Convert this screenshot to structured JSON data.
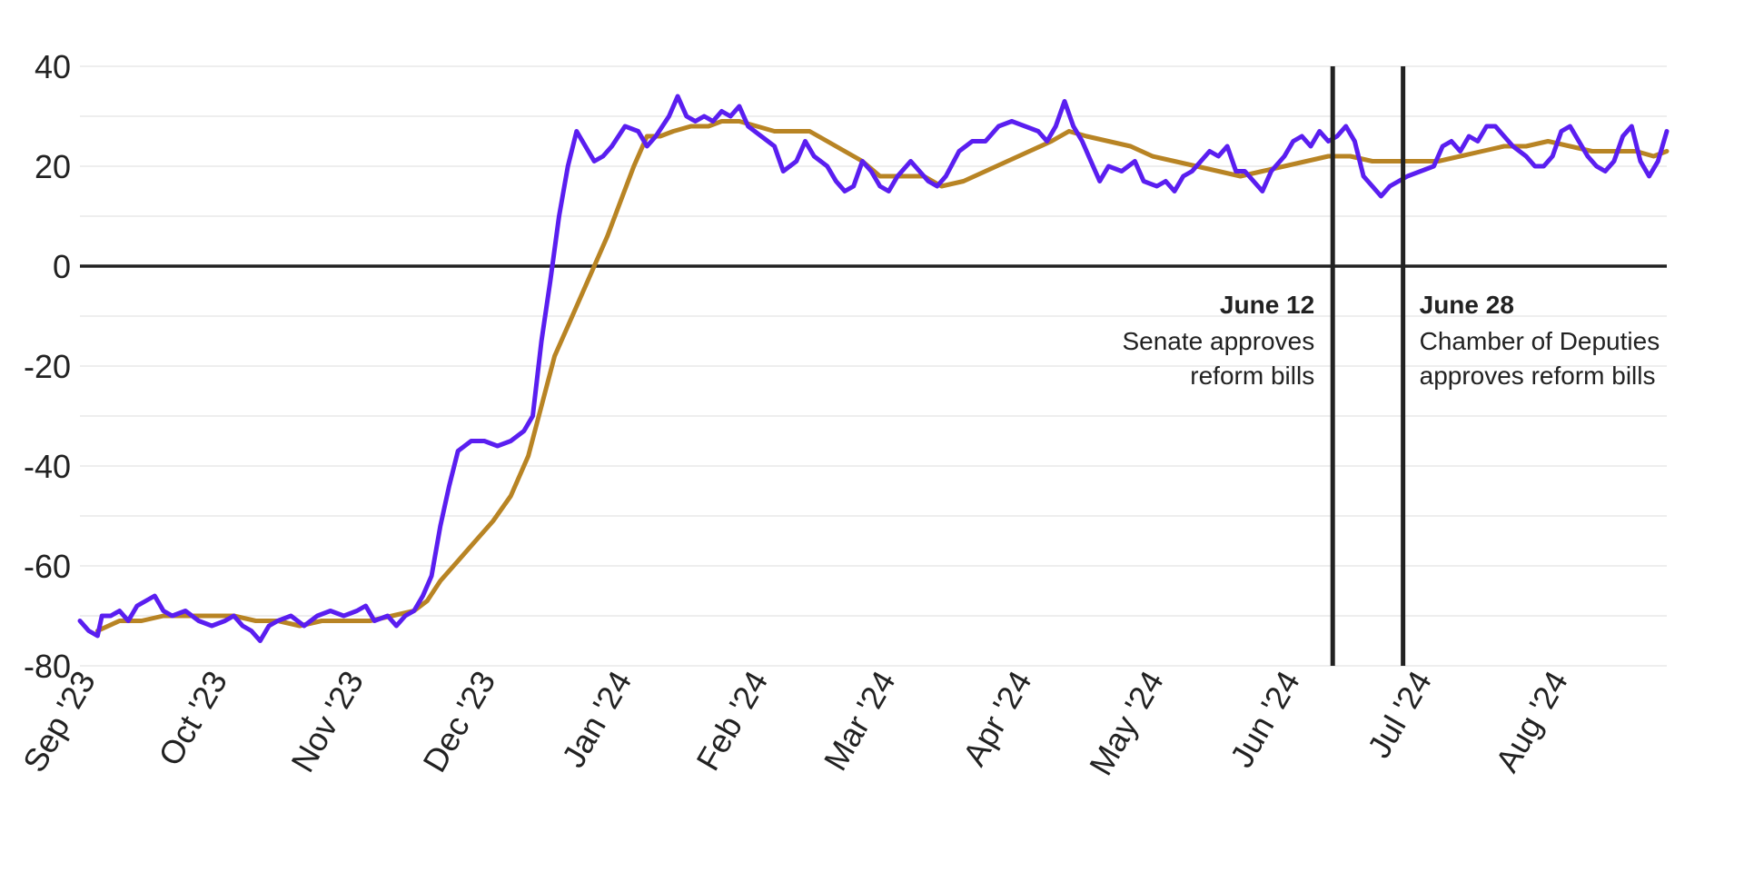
{
  "chart_data": {
    "type": "line",
    "title": "",
    "xlabel": "",
    "ylabel": "",
    "ylim": [
      -80,
      40
    ],
    "yticks": [
      40,
      20,
      0,
      -20,
      -40,
      -60,
      -80
    ],
    "x_range": [
      "2023-09-01",
      "2024-08-27"
    ],
    "x_tick_labels": [
      {
        "date": "2023-09-01",
        "label": "Sep '23"
      },
      {
        "date": "2023-10-01",
        "label": "Oct '23"
      },
      {
        "date": "2023-11-01",
        "label": "Nov '23"
      },
      {
        "date": "2023-12-01",
        "label": "Dec '23"
      },
      {
        "date": "2024-01-01",
        "label": "Jan '24"
      },
      {
        "date": "2024-02-01",
        "label": "Feb '24"
      },
      {
        "date": "2024-03-01",
        "label": "Mar '24"
      },
      {
        "date": "2024-04-01",
        "label": "Apr '24"
      },
      {
        "date": "2024-05-01",
        "label": "May '24"
      },
      {
        "date": "2024-06-01",
        "label": "Jun '24"
      },
      {
        "date": "2024-07-01",
        "label": "Jul '24"
      },
      {
        "date": "2024-08-01",
        "label": "Aug '24"
      }
    ],
    "grid": true,
    "series": [
      {
        "color": "#5a1ef0",
        "points": [
          [
            "2023-09-01",
            -71
          ],
          [
            "2023-09-03",
            -73
          ],
          [
            "2023-09-05",
            -74
          ],
          [
            "2023-09-06",
            -70
          ],
          [
            "2023-09-08",
            -70
          ],
          [
            "2023-09-10",
            -69
          ],
          [
            "2023-09-12",
            -71
          ],
          [
            "2023-09-14",
            -68
          ],
          [
            "2023-09-16",
            -67
          ],
          [
            "2023-09-18",
            -66
          ],
          [
            "2023-09-20",
            -69
          ],
          [
            "2023-09-22",
            -70
          ],
          [
            "2023-09-25",
            -69
          ],
          [
            "2023-09-28",
            -71
          ],
          [
            "2023-10-01",
            -72
          ],
          [
            "2023-10-04",
            -71
          ],
          [
            "2023-10-06",
            -70
          ],
          [
            "2023-10-08",
            -72
          ],
          [
            "2023-10-10",
            -73
          ],
          [
            "2023-10-12",
            -75
          ],
          [
            "2023-10-14",
            -72
          ],
          [
            "2023-10-16",
            -71
          ],
          [
            "2023-10-19",
            -70
          ],
          [
            "2023-10-22",
            -72
          ],
          [
            "2023-10-25",
            -70
          ],
          [
            "2023-10-28",
            -69
          ],
          [
            "2023-10-31",
            -70
          ],
          [
            "2023-11-03",
            -69
          ],
          [
            "2023-11-05",
            -68
          ],
          [
            "2023-11-07",
            -71
          ],
          [
            "2023-11-10",
            -70
          ],
          [
            "2023-11-12",
            -72
          ],
          [
            "2023-11-14",
            -70
          ],
          [
            "2023-11-16",
            -69
          ],
          [
            "2023-11-18",
            -66
          ],
          [
            "2023-11-20",
            -62
          ],
          [
            "2023-11-22",
            -52
          ],
          [
            "2023-11-24",
            -44
          ],
          [
            "2023-11-26",
            -37
          ],
          [
            "2023-11-29",
            -35
          ],
          [
            "2023-12-02",
            -35
          ],
          [
            "2023-12-05",
            -36
          ],
          [
            "2023-12-08",
            -35
          ],
          [
            "2023-12-11",
            -33
          ],
          [
            "2023-12-13",
            -30
          ],
          [
            "2023-12-15",
            -15
          ],
          [
            "2023-12-17",
            -3
          ],
          [
            "2023-12-19",
            10
          ],
          [
            "2023-12-21",
            20
          ],
          [
            "2023-12-23",
            27
          ],
          [
            "2023-12-25",
            24
          ],
          [
            "2023-12-27",
            21
          ],
          [
            "2023-12-29",
            22
          ],
          [
            "2023-12-31",
            24
          ],
          [
            "2024-01-03",
            28
          ],
          [
            "2024-01-06",
            27
          ],
          [
            "2024-01-08",
            24
          ],
          [
            "2024-01-10",
            26
          ],
          [
            "2024-01-13",
            30
          ],
          [
            "2024-01-15",
            34
          ],
          [
            "2024-01-17",
            30
          ],
          [
            "2024-01-19",
            29
          ],
          [
            "2024-01-21",
            30
          ],
          [
            "2024-01-23",
            29
          ],
          [
            "2024-01-25",
            31
          ],
          [
            "2024-01-27",
            30
          ],
          [
            "2024-01-29",
            32
          ],
          [
            "2024-01-31",
            28
          ],
          [
            "2024-02-03",
            26
          ],
          [
            "2024-02-06",
            24
          ],
          [
            "2024-02-08",
            19
          ],
          [
            "2024-02-11",
            21
          ],
          [
            "2024-02-13",
            25
          ],
          [
            "2024-02-15",
            22
          ],
          [
            "2024-02-18",
            20
          ],
          [
            "2024-02-20",
            17
          ],
          [
            "2024-02-22",
            15
          ],
          [
            "2024-02-24",
            16
          ],
          [
            "2024-02-26",
            21
          ],
          [
            "2024-02-28",
            19
          ],
          [
            "2024-03-01",
            16
          ],
          [
            "2024-03-03",
            15
          ],
          [
            "2024-03-05",
            18
          ],
          [
            "2024-03-08",
            21
          ],
          [
            "2024-03-10",
            19
          ],
          [
            "2024-03-12",
            17
          ],
          [
            "2024-03-14",
            16
          ],
          [
            "2024-03-16",
            18
          ],
          [
            "2024-03-19",
            23
          ],
          [
            "2024-03-22",
            25
          ],
          [
            "2024-03-25",
            25
          ],
          [
            "2024-03-28",
            28
          ],
          [
            "2024-03-31",
            29
          ],
          [
            "2024-04-03",
            28
          ],
          [
            "2024-04-06",
            27
          ],
          [
            "2024-04-08",
            25
          ],
          [
            "2024-04-10",
            28
          ],
          [
            "2024-04-12",
            33
          ],
          [
            "2024-04-14",
            28
          ],
          [
            "2024-04-16",
            25
          ],
          [
            "2024-04-18",
            21
          ],
          [
            "2024-04-20",
            17
          ],
          [
            "2024-04-22",
            20
          ],
          [
            "2024-04-25",
            19
          ],
          [
            "2024-04-28",
            21
          ],
          [
            "2024-04-30",
            17
          ],
          [
            "2024-05-03",
            16
          ],
          [
            "2024-05-05",
            17
          ],
          [
            "2024-05-07",
            15
          ],
          [
            "2024-05-09",
            18
          ],
          [
            "2024-05-11",
            19
          ],
          [
            "2024-05-13",
            21
          ],
          [
            "2024-05-15",
            23
          ],
          [
            "2024-05-17",
            22
          ],
          [
            "2024-05-19",
            24
          ],
          [
            "2024-05-21",
            19
          ],
          [
            "2024-05-23",
            19
          ],
          [
            "2024-05-25",
            17
          ],
          [
            "2024-05-27",
            15
          ],
          [
            "2024-05-29",
            19
          ],
          [
            "2024-06-01",
            22
          ],
          [
            "2024-06-03",
            25
          ],
          [
            "2024-06-05",
            26
          ],
          [
            "2024-06-07",
            24
          ],
          [
            "2024-06-09",
            27
          ],
          [
            "2024-06-11",
            25
          ],
          [
            "2024-06-13",
            26
          ],
          [
            "2024-06-15",
            28
          ],
          [
            "2024-06-17",
            25
          ],
          [
            "2024-06-19",
            18
          ],
          [
            "2024-06-21",
            16
          ],
          [
            "2024-06-23",
            14
          ],
          [
            "2024-06-25",
            16
          ],
          [
            "2024-06-27",
            17
          ],
          [
            "2024-06-29",
            18
          ],
          [
            "2024-07-02",
            19
          ],
          [
            "2024-07-05",
            20
          ],
          [
            "2024-07-07",
            24
          ],
          [
            "2024-07-09",
            25
          ],
          [
            "2024-07-11",
            23
          ],
          [
            "2024-07-13",
            26
          ],
          [
            "2024-07-15",
            25
          ],
          [
            "2024-07-17",
            28
          ],
          [
            "2024-07-19",
            28
          ],
          [
            "2024-07-21",
            26
          ],
          [
            "2024-07-23",
            24
          ],
          [
            "2024-07-26",
            22
          ],
          [
            "2024-07-28",
            20
          ],
          [
            "2024-07-30",
            20
          ],
          [
            "2024-08-01",
            22
          ],
          [
            "2024-08-03",
            27
          ],
          [
            "2024-08-05",
            28
          ],
          [
            "2024-08-07",
            25
          ],
          [
            "2024-08-09",
            22
          ],
          [
            "2024-08-11",
            20
          ],
          [
            "2024-08-13",
            19
          ],
          [
            "2024-08-15",
            21
          ],
          [
            "2024-08-17",
            26
          ],
          [
            "2024-08-19",
            28
          ],
          [
            "2024-08-21",
            21
          ],
          [
            "2024-08-23",
            18
          ],
          [
            "2024-08-25",
            21
          ],
          [
            "2024-08-27",
            27
          ]
        ]
      },
      {
        "color": "#b88424",
        "points": [
          [
            "2023-09-05",
            -73
          ],
          [
            "2023-09-10",
            -71
          ],
          [
            "2023-09-15",
            -71
          ],
          [
            "2023-09-20",
            -70
          ],
          [
            "2023-09-25",
            -70
          ],
          [
            "2023-10-01",
            -70
          ],
          [
            "2023-10-06",
            -70
          ],
          [
            "2023-10-11",
            -71
          ],
          [
            "2023-10-16",
            -71
          ],
          [
            "2023-10-21",
            -72
          ],
          [
            "2023-10-26",
            -71
          ],
          [
            "2023-11-01",
            -71
          ],
          [
            "2023-11-06",
            -71
          ],
          [
            "2023-11-11",
            -70
          ],
          [
            "2023-11-16",
            -69
          ],
          [
            "2023-11-19",
            -67
          ],
          [
            "2023-11-22",
            -63
          ],
          [
            "2023-11-26",
            -59
          ],
          [
            "2023-11-30",
            -55
          ],
          [
            "2023-12-04",
            -51
          ],
          [
            "2023-12-08",
            -46
          ],
          [
            "2023-12-12",
            -38
          ],
          [
            "2023-12-15",
            -28
          ],
          [
            "2023-12-18",
            -18
          ],
          [
            "2023-12-21",
            -12
          ],
          [
            "2023-12-24",
            -6
          ],
          [
            "2023-12-27",
            0
          ],
          [
            "2023-12-30",
            6
          ],
          [
            "2024-01-02",
            13
          ],
          [
            "2024-01-05",
            20
          ],
          [
            "2024-01-08",
            26
          ],
          [
            "2024-01-11",
            26
          ],
          [
            "2024-01-14",
            27
          ],
          [
            "2024-01-18",
            28
          ],
          [
            "2024-01-22",
            28
          ],
          [
            "2024-01-25",
            29
          ],
          [
            "2024-01-29",
            29
          ],
          [
            "2024-02-02",
            28
          ],
          [
            "2024-02-06",
            27
          ],
          [
            "2024-02-10",
            27
          ],
          [
            "2024-02-14",
            27
          ],
          [
            "2024-02-18",
            25
          ],
          [
            "2024-02-22",
            23
          ],
          [
            "2024-02-26",
            21
          ],
          [
            "2024-03-01",
            18
          ],
          [
            "2024-03-06",
            18
          ],
          [
            "2024-03-11",
            18
          ],
          [
            "2024-03-15",
            16
          ],
          [
            "2024-03-20",
            17
          ],
          [
            "2024-03-25",
            19
          ],
          [
            "2024-03-30",
            21
          ],
          [
            "2024-04-04",
            23
          ],
          [
            "2024-04-09",
            25
          ],
          [
            "2024-04-13",
            27
          ],
          [
            "2024-04-17",
            26
          ],
          [
            "2024-04-22",
            25
          ],
          [
            "2024-04-27",
            24
          ],
          [
            "2024-05-02",
            22
          ],
          [
            "2024-05-07",
            21
          ],
          [
            "2024-05-12",
            20
          ],
          [
            "2024-05-17",
            19
          ],
          [
            "2024-05-22",
            18
          ],
          [
            "2024-05-27",
            19
          ],
          [
            "2024-06-01",
            20
          ],
          [
            "2024-06-06",
            21
          ],
          [
            "2024-06-11",
            22
          ],
          [
            "2024-06-16",
            22
          ],
          [
            "2024-06-21",
            21
          ],
          [
            "2024-06-26",
            21
          ],
          [
            "2024-07-01",
            21
          ],
          [
            "2024-07-06",
            21
          ],
          [
            "2024-07-11",
            22
          ],
          [
            "2024-07-16",
            23
          ],
          [
            "2024-07-21",
            24
          ],
          [
            "2024-07-26",
            24
          ],
          [
            "2024-07-31",
            25
          ],
          [
            "2024-08-05",
            24
          ],
          [
            "2024-08-10",
            23
          ],
          [
            "2024-08-15",
            23
          ],
          [
            "2024-08-20",
            23
          ],
          [
            "2024-08-24",
            22
          ],
          [
            "2024-08-27",
            23
          ]
        ]
      }
    ],
    "annotations": [
      {
        "date": "2024-06-12",
        "label": "June 12",
        "text": [
          "Senate approves",
          "reform bills"
        ],
        "side": "left"
      },
      {
        "date": "2024-06-28",
        "label": "June 28",
        "text": [
          "Chamber of Deputies",
          "approves reform bills"
        ],
        "side": "right"
      }
    ]
  }
}
